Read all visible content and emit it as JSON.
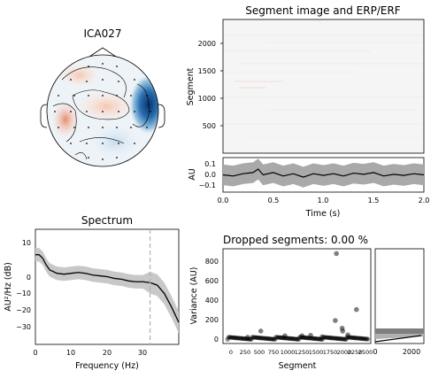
{
  "chart_data": [
    {
      "type": "heatmap",
      "panel": "topomap",
      "title": "ICA027"
    },
    {
      "type": "heatmap",
      "panel": "segment-image",
      "title": "Segment image and ERP/ERF",
      "ylabel": "Segment",
      "yticks": [
        "500",
        "1000",
        "1500",
        "2000"
      ],
      "ylim": [
        1,
        2450
      ]
    },
    {
      "type": "area",
      "panel": "erp",
      "xlabel": "Time (s)",
      "ylabel": "AU",
      "xticks": [
        "0.0",
        "0.5",
        "1.0",
        "1.5",
        "2.0"
      ],
      "yticks": [
        "0.1",
        "0.0",
        "−0.1"
      ],
      "xlim": [
        0,
        2.0
      ],
      "ylim": [
        -0.15,
        0.15
      ],
      "mean": [
        [
          0,
          0.0
        ],
        [
          0.1,
          -0.01
        ],
        [
          0.2,
          0.01
        ],
        [
          0.3,
          0.02
        ],
        [
          0.35,
          0.05
        ],
        [
          0.4,
          0.0
        ],
        [
          0.5,
          0.02
        ],
        [
          0.6,
          -0.01
        ],
        [
          0.7,
          0.01
        ],
        [
          0.8,
          -0.02
        ],
        [
          0.9,
          0.01
        ],
        [
          1.0,
          -0.005
        ],
        [
          1.1,
          0.01
        ],
        [
          1.2,
          -0.01
        ],
        [
          1.3,
          0.015
        ],
        [
          1.4,
          0.005
        ],
        [
          1.5,
          0.02
        ],
        [
          1.6,
          -0.01
        ],
        [
          1.7,
          0.005
        ],
        [
          1.8,
          -0.005
        ],
        [
          1.9,
          0.01
        ],
        [
          2.0,
          0.0
        ]
      ],
      "band_halfwidth": 0.09
    },
    {
      "type": "line",
      "panel": "spectrum",
      "title": "Spectrum",
      "xlabel": "Frequency (Hz)",
      "ylabel": "AU²/Hz (dB)",
      "xticks": [
        "0",
        "10",
        "20",
        "30"
      ],
      "yticks": [
        "10",
        "0",
        "−10",
        "−20",
        "−30"
      ],
      "xlim": [
        0,
        40
      ],
      "ylim": [
        -40,
        28
      ],
      "cutoff_line": 32,
      "mean": [
        [
          0,
          13
        ],
        [
          1,
          13
        ],
        [
          2,
          11
        ],
        [
          3,
          7
        ],
        [
          4,
          4
        ],
        [
          6,
          2
        ],
        [
          8,
          1.5
        ],
        [
          10,
          2
        ],
        [
          12,
          2.5
        ],
        [
          14,
          2
        ],
        [
          16,
          1
        ],
        [
          18,
          0.5
        ],
        [
          20,
          0
        ],
        [
          22,
          -1
        ],
        [
          24,
          -1.5
        ],
        [
          26,
          -2.5
        ],
        [
          28,
          -3
        ],
        [
          30,
          -3
        ],
        [
          32,
          -3.5
        ],
        [
          34,
          -5
        ],
        [
          36,
          -10
        ],
        [
          38,
          -18
        ],
        [
          40,
          -27
        ]
      ],
      "band_halfwidth": 4
    },
    {
      "type": "scatter",
      "panel": "dropped-segments",
      "title": "Dropped segments: 0.00 %",
      "xlabel": "Segment",
      "ylabel": "Variance (AU)",
      "xticks": [
        "0",
        "250",
        "500",
        "750",
        "1000",
        "1250",
        "1500",
        "1750",
        "2000",
        "2250",
        "2500"
      ],
      "yticks": [
        "0",
        "200",
        "400",
        "600",
        "800"
      ],
      "xlim": [
        -80,
        2500
      ],
      "ylim": [
        -40,
        950
      ],
      "outliers": [
        [
          1900,
          900
        ],
        [
          1880,
          200
        ],
        [
          2250,
          315
        ],
        [
          580,
          90
        ],
        [
          2000,
          120
        ],
        [
          2010,
          90
        ],
        [
          1000,
          40
        ],
        [
          1300,
          40
        ],
        [
          1450,
          45
        ],
        [
          350,
          25
        ],
        [
          1650,
          30
        ],
        [
          2100,
          50
        ]
      ]
    },
    {
      "type": "bar",
      "panel": "variance-histogram",
      "xticks": [
        "0",
        "2000"
      ],
      "xlim": [
        0,
        2200
      ],
      "ylim": [
        -40,
        950
      ]
    }
  ]
}
